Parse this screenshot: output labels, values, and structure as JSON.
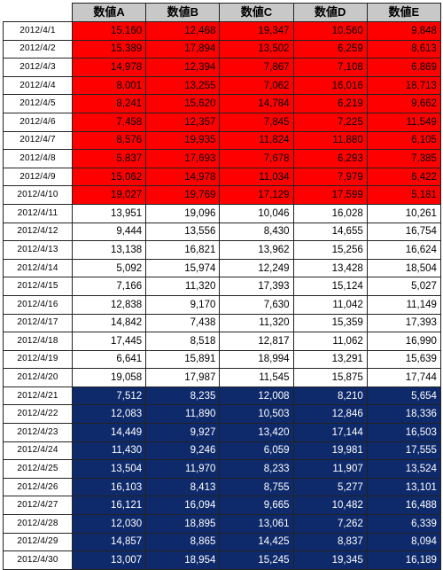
{
  "headers": [
    "",
    "数値A",
    "数値B",
    "数値C",
    "数値D",
    "数値E"
  ],
  "colors": {
    "red_group": "#ff0000",
    "white_group": "#ffffff",
    "navy_group": "#0f2a6b",
    "header_bg": "#c8c8c8"
  },
  "rows": [
    {
      "date": "2012/4/1",
      "group": "red",
      "values": [
        "15,160",
        "12,468",
        "19,347",
        "10,560",
        "9,848"
      ]
    },
    {
      "date": "2012/4/2",
      "group": "red",
      "values": [
        "15,389",
        "17,894",
        "13,502",
        "6,259",
        "8,613"
      ]
    },
    {
      "date": "2012/4/3",
      "group": "red",
      "values": [
        "14,978",
        "12,394",
        "7,867",
        "7,108",
        "6,869"
      ]
    },
    {
      "date": "2012/4/4",
      "group": "red",
      "values": [
        "8,001",
        "13,255",
        "7,062",
        "16,016",
        "18,713"
      ]
    },
    {
      "date": "2012/4/5",
      "group": "red",
      "values": [
        "8,241",
        "15,620",
        "14,784",
        "6,219",
        "9,662"
      ]
    },
    {
      "date": "2012/4/6",
      "group": "red",
      "values": [
        "7,458",
        "12,357",
        "7,845",
        "7,225",
        "11,549"
      ]
    },
    {
      "date": "2012/4/7",
      "group": "red",
      "values": [
        "8,576",
        "19,935",
        "11,824",
        "11,880",
        "6,105"
      ]
    },
    {
      "date": "2012/4/8",
      "group": "red",
      "values": [
        "5,837",
        "17,693",
        "7,678",
        "6,293",
        "7,385"
      ]
    },
    {
      "date": "2012/4/9",
      "group": "red",
      "values": [
        "15,062",
        "14,978",
        "11,034",
        "7,979",
        "6,422"
      ]
    },
    {
      "date": "2012/4/10",
      "group": "red",
      "values": [
        "19,027",
        "19,769",
        "17,129",
        "17,599",
        "5,181"
      ]
    },
    {
      "date": "2012/4/11",
      "group": "white",
      "values": [
        "13,951",
        "19,096",
        "10,046",
        "16,028",
        "10,261"
      ]
    },
    {
      "date": "2012/4/12",
      "group": "white",
      "values": [
        "9,444",
        "13,556",
        "8,430",
        "14,655",
        "16,754"
      ]
    },
    {
      "date": "2012/4/13",
      "group": "white",
      "values": [
        "13,138",
        "16,821",
        "13,962",
        "15,256",
        "16,624"
      ]
    },
    {
      "date": "2012/4/14",
      "group": "white",
      "values": [
        "5,092",
        "15,974",
        "12,249",
        "13,428",
        "18,504"
      ]
    },
    {
      "date": "2012/4/15",
      "group": "white",
      "values": [
        "7,166",
        "11,320",
        "17,393",
        "15,124",
        "5,027"
      ]
    },
    {
      "date": "2012/4/16",
      "group": "white",
      "values": [
        "12,838",
        "9,170",
        "7,630",
        "11,042",
        "11,149"
      ]
    },
    {
      "date": "2012/4/17",
      "group": "white",
      "values": [
        "14,842",
        "7,438",
        "11,320",
        "15,359",
        "17,393"
      ]
    },
    {
      "date": "2012/4/18",
      "group": "white",
      "values": [
        "17,445",
        "8,518",
        "12,817",
        "11,062",
        "16,990"
      ]
    },
    {
      "date": "2012/4/19",
      "group": "white",
      "values": [
        "6,641",
        "15,891",
        "18,994",
        "13,291",
        "15,639"
      ]
    },
    {
      "date": "2012/4/20",
      "group": "white",
      "values": [
        "19,058",
        "17,987",
        "11,545",
        "15,875",
        "17,744"
      ]
    },
    {
      "date": "2012/4/21",
      "group": "navy",
      "values": [
        "7,512",
        "8,235",
        "12,008",
        "8,210",
        "5,654"
      ]
    },
    {
      "date": "2012/4/22",
      "group": "navy",
      "values": [
        "12,083",
        "11,890",
        "10,503",
        "12,846",
        "18,336"
      ]
    },
    {
      "date": "2012/4/23",
      "group": "navy",
      "values": [
        "14,449",
        "9,927",
        "13,420",
        "17,144",
        "16,503"
      ]
    },
    {
      "date": "2012/4/24",
      "group": "navy",
      "values": [
        "11,430",
        "9,246",
        "6,059",
        "19,981",
        "17,555"
      ]
    },
    {
      "date": "2012/4/25",
      "group": "navy",
      "values": [
        "13,504",
        "11,970",
        "8,233",
        "11,907",
        "13,524"
      ]
    },
    {
      "date": "2012/4/26",
      "group": "navy",
      "values": [
        "16,103",
        "8,413",
        "8,755",
        "5,277",
        "13,101"
      ]
    },
    {
      "date": "2012/4/27",
      "group": "navy",
      "values": [
        "16,121",
        "16,094",
        "9,665",
        "10,482",
        "16,488"
      ]
    },
    {
      "date": "2012/4/28",
      "group": "navy",
      "values": [
        "12,030",
        "18,895",
        "13,061",
        "7,262",
        "6,339"
      ]
    },
    {
      "date": "2012/4/29",
      "group": "navy",
      "values": [
        "14,857",
        "8,865",
        "14,425",
        "8,837",
        "8,094"
      ]
    },
    {
      "date": "2012/4/30",
      "group": "navy",
      "values": [
        "13,007",
        "18,954",
        "15,245",
        "19,345",
        "16,189"
      ]
    }
  ]
}
